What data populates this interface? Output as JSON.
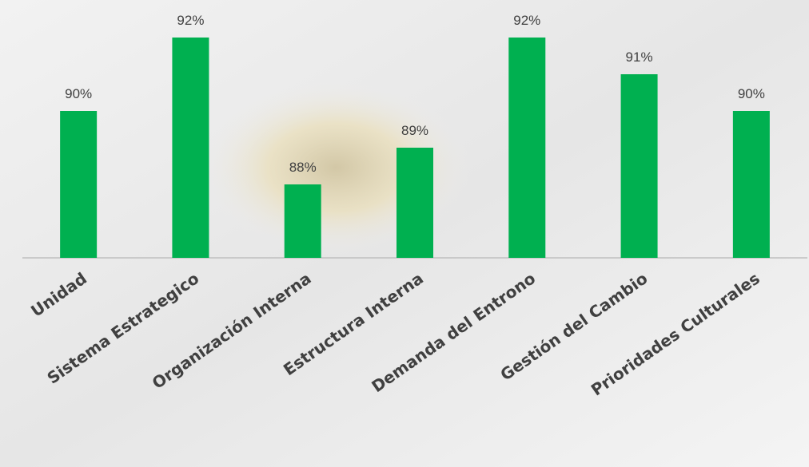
{
  "chart_data": {
    "type": "bar",
    "categories": [
      "Unidad",
      "Sistema Estrategico",
      "Organización Interna",
      "Estructura Interna",
      "Demanda del Entrono",
      "Gestión del Cambio",
      "Prioridades Culturales"
    ],
    "values": [
      90,
      92,
      88,
      89,
      92,
      91,
      90
    ],
    "value_labels": [
      "90%",
      "92%",
      "88%",
      "89%",
      "92%",
      "91%",
      "90%"
    ],
    "color": "#00b050",
    "ylim": [
      86,
      92.6
    ]
  }
}
